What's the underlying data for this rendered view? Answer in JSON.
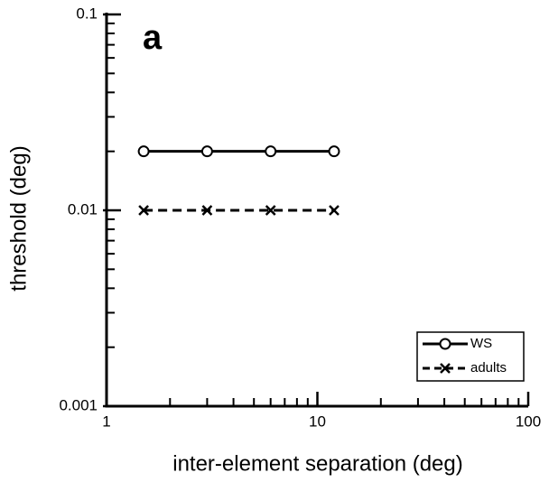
{
  "chart_data": {
    "type": "line",
    "title": "a",
    "xlabel": "inter-element separation (deg)",
    "ylabel": "threshold (deg)",
    "x": [
      1.5,
      3,
      6,
      12
    ],
    "series": [
      {
        "name": "WS",
        "color": "#000000",
        "linestyle": "solid",
        "marker": "o",
        "values": [
          0.02,
          0.02,
          0.02,
          0.02
        ]
      },
      {
        "name": "adults",
        "color": "#000000",
        "linestyle": "dashed",
        "marker": "x",
        "values": [
          0.01,
          0.01,
          0.01,
          0.01
        ]
      }
    ],
    "xscale": "log",
    "yscale": "log",
    "xlim": [
      1,
      100
    ],
    "ylim": [
      0.001,
      0.1
    ],
    "xticks": [
      1,
      10,
      100
    ],
    "yticks": [
      0.001,
      0.01,
      0.1
    ],
    "xminor_ticks": [
      2,
      3,
      4,
      5,
      6,
      7,
      8,
      9,
      20,
      30,
      40,
      50,
      60,
      70,
      80,
      90
    ],
    "yminor_ticks": [
      0.002,
      0.003,
      0.004,
      0.005,
      0.006,
      0.007,
      0.008,
      0.009,
      0.02,
      0.03,
      0.04,
      0.05,
      0.06,
      0.07,
      0.08,
      0.09
    ],
    "legend": "lower right",
    "grid": false
  }
}
